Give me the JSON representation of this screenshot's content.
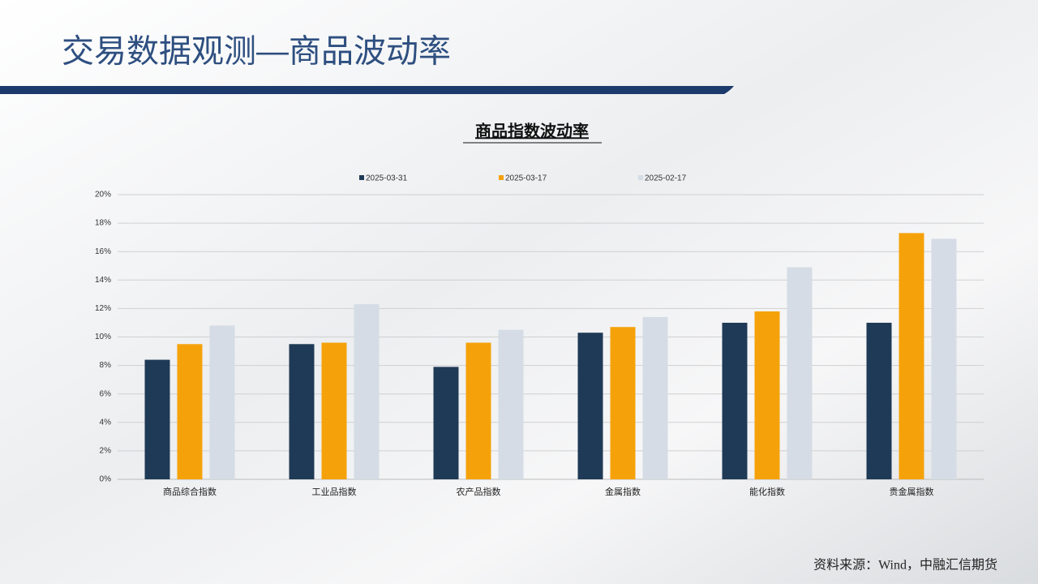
{
  "header": {
    "title": "交易数据观测—商品波动率"
  },
  "source": "资料来源：Wind，中融汇信期货",
  "chart_data": {
    "type": "bar",
    "title": "商品指数波动率",
    "categories": [
      "商品综合指数",
      "工业品指数",
      "农产品指数",
      "金属指数",
      "能化指数",
      "贵金属指数"
    ],
    "series": [
      {
        "name": "2025-03-31",
        "color": "#1f3a56",
        "values": [
          8.4,
          9.5,
          7.9,
          10.3,
          11.0,
          11.0
        ]
      },
      {
        "name": "2025-03-17",
        "color": "#f5a20a",
        "values": [
          9.5,
          9.6,
          9.6,
          10.7,
          11.8,
          17.3
        ]
      },
      {
        "name": "2025-02-17",
        "color": "#d5dce5",
        "values": [
          10.8,
          12.3,
          10.5,
          11.4,
          14.9,
          16.9
        ]
      }
    ],
    "ylim": [
      0,
      20
    ],
    "yticks": [
      {
        "value": 0,
        "label": "0%"
      },
      {
        "value": 2,
        "label": "2%"
      },
      {
        "value": 4,
        "label": "4%"
      },
      {
        "value": 6,
        "label": "6%"
      },
      {
        "value": 8,
        "label": "8%"
      },
      {
        "value": 10,
        "label": "10%"
      },
      {
        "value": 12,
        "label": "12%"
      },
      {
        "value": 14,
        "label": "14%"
      },
      {
        "value": 16,
        "label": "16%"
      },
      {
        "value": 18,
        "label": "18%"
      },
      {
        "value": 20,
        "label": "20%"
      }
    ],
    "grid": true,
    "legend": "top"
  }
}
